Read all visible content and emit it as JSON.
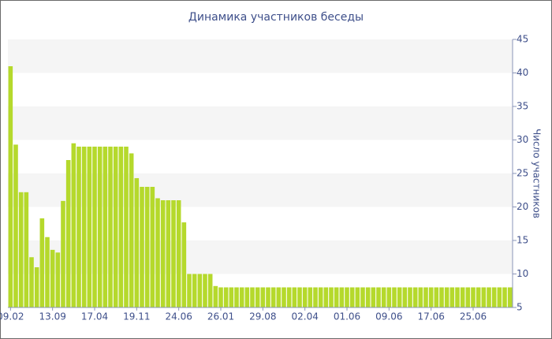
{
  "chart_data": {
    "type": "bar",
    "title": "Динамика участников беседы",
    "y_label": "Число участников",
    "categories": [
      "09.02",
      null,
      null,
      null,
      null,
      null,
      null,
      null,
      "13.09",
      null,
      null,
      null,
      null,
      null,
      null,
      null,
      "17.04",
      null,
      null,
      null,
      null,
      null,
      null,
      null,
      "19.11",
      null,
      null,
      null,
      null,
      null,
      null,
      null,
      "24.06",
      null,
      null,
      null,
      null,
      null,
      null,
      null,
      "26.01",
      null,
      null,
      null,
      null,
      null,
      null,
      null,
      "29.08",
      null,
      null,
      null,
      null,
      null,
      null,
      null,
      "02.04",
      null,
      null,
      null,
      null,
      null,
      null,
      null,
      "01.06",
      null,
      null,
      null,
      null,
      null,
      null,
      null,
      "09.06",
      null,
      null,
      null,
      null,
      null,
      null,
      null,
      "17.06",
      null,
      null,
      null,
      null,
      null,
      null,
      null,
      "25.06",
      null,
      null,
      null,
      null,
      null,
      null,
      null
    ],
    "values": [
      41,
      29.3,
      22.2,
      22.2,
      12.5,
      11,
      18.3,
      15.5,
      13.6,
      13.2,
      20.9,
      27,
      29.5,
      29,
      29,
      29,
      29,
      29,
      29,
      29,
      29,
      29,
      29,
      28,
      24.3,
      23,
      23,
      23,
      21.3,
      21,
      21,
      21,
      21,
      17.7,
      10,
      10,
      10,
      10,
      10,
      8.2,
      8,
      8,
      8,
      8,
      8,
      8,
      8,
      8,
      8,
      8,
      8,
      8,
      8,
      8,
      8,
      8,
      8,
      8,
      8,
      8,
      8,
      8,
      8,
      8,
      8,
      8,
      8,
      8,
      8,
      8,
      8,
      8,
      8,
      8,
      8,
      8,
      8,
      8,
      8,
      8,
      8,
      8,
      8,
      8,
      8,
      8,
      8,
      8,
      8,
      8,
      8,
      8,
      8,
      8,
      8,
      8
    ],
    "color": "#b5d92c",
    "ylim": [
      5,
      45
    ],
    "yticks": [
      5,
      10,
      15,
      20,
      25,
      30,
      35,
      40,
      45
    ],
    "grid": true,
    "y_axis_side": "right"
  }
}
